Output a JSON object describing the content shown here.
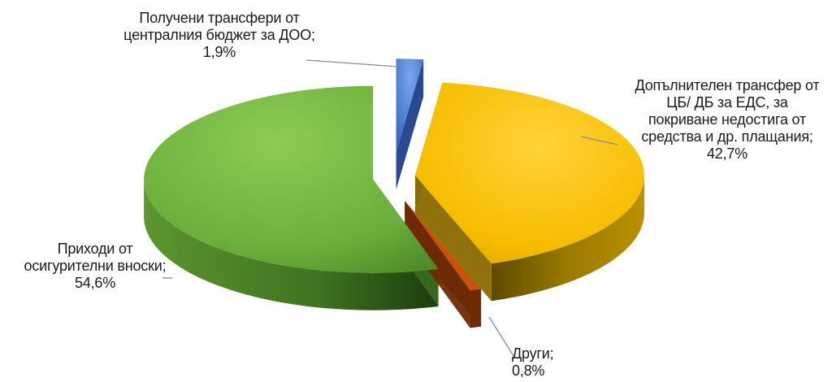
{
  "chart_data": {
    "type": "pie",
    "title": "",
    "legend": "none",
    "slices": [
      {
        "name": "Получени трансфери от централния бюджет за ДОО",
        "value": 1.9,
        "label_lines": [
          "Получени трансфери от",
          "централния бюджет за ДОО;",
          "1,9%"
        ],
        "color_top": "#4a7fd6",
        "color_side": "#1f3f8a"
      },
      {
        "name": "Допълнителен трансфер от ЦБ/ ДБ за ЕДС, за покриване недостига от средства и др. плащания",
        "value": 42.7,
        "label_lines": [
          "Допълнителен трансфер от",
          "ЦБ/ ДБ за ЕДС, за",
          "покриване недостига от",
          "средства и др. плащания;",
          "42,7%"
        ],
        "color_top": "#f5b800",
        "color_side": "#8a6a00"
      },
      {
        "name": "Други",
        "value": 0.8,
        "label_lines": [
          "Други;",
          "0,8%"
        ],
        "color_top": "#c8510e",
        "color_side": "#6e2a05"
      },
      {
        "name": "Приходи от осигурителни вноски",
        "value": 54.6,
        "label_lines": [
          "Приходи от",
          "осигурителни вноски;",
          "54,6%"
        ],
        "color_top": "#6fb03d",
        "color_side": "#3a6a1c"
      }
    ]
  }
}
